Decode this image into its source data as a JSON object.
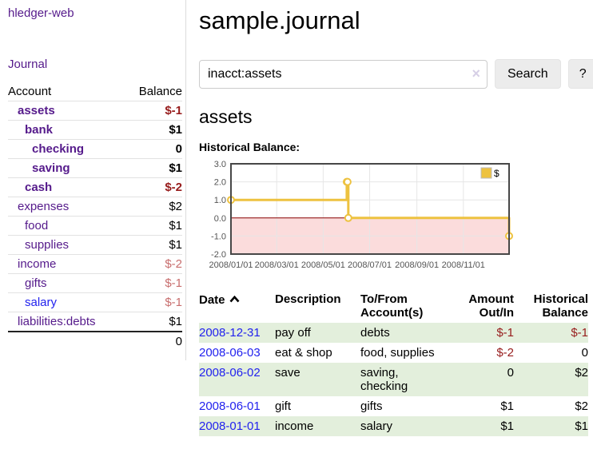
{
  "colors": {
    "purple": "#551a8b",
    "blue": "#2222ee",
    "dark_red": "#971c1c",
    "rose": "#c86e6e",
    "green_row": "#e3efdc",
    "chart_line": "#edc240",
    "chart_negative_fill": "#fbdcdc",
    "chart_zero_line": "#8b0000",
    "chart_border": "#474747",
    "chart_grid": "#e6e6e6"
  },
  "sidebar": {
    "app_title": "hledger-web",
    "journal_link": "Journal",
    "accounts_header": {
      "account": "Account",
      "balance": "Balance"
    },
    "accounts": [
      {
        "name": "assets",
        "balance": "$-1",
        "level": 1,
        "bold": true,
        "name_color": "purple",
        "balance_color": "dark_red"
      },
      {
        "name": "bank",
        "balance": "$1",
        "level": 2,
        "bold": true,
        "name_color": "purple",
        "balance_color": "black"
      },
      {
        "name": "checking",
        "balance": "0",
        "level": 3,
        "bold": true,
        "name_color": "purple",
        "balance_color": "black"
      },
      {
        "name": "saving",
        "balance": "$1",
        "level": 3,
        "bold": true,
        "name_color": "purple",
        "balance_color": "black"
      },
      {
        "name": "cash",
        "balance": "$-2",
        "level": 2,
        "bold": true,
        "name_color": "purple",
        "balance_color": "dark_red"
      },
      {
        "name": "expenses",
        "balance": "$2",
        "level": 1,
        "bold": false,
        "name_color": "purple",
        "balance_color": "black"
      },
      {
        "name": "food",
        "balance": "$1",
        "level": 2,
        "bold": false,
        "name_color": "purple",
        "balance_color": "black"
      },
      {
        "name": "supplies",
        "balance": "$1",
        "level": 2,
        "bold": false,
        "name_color": "purple",
        "balance_color": "black"
      },
      {
        "name": "income",
        "balance": "$-2",
        "level": 1,
        "bold": false,
        "name_color": "purple",
        "balance_color": "rose"
      },
      {
        "name": "gifts",
        "balance": "$-1",
        "level": 2,
        "bold": false,
        "name_color": "purple",
        "balance_color": "rose"
      },
      {
        "name": "salary",
        "balance": "$-1",
        "level": 2,
        "bold": false,
        "name_color": "blue",
        "balance_color": "rose"
      },
      {
        "name": "liabilities:debts",
        "balance": "$1",
        "level": 1,
        "bold": false,
        "name_color": "purple",
        "balance_color": "black"
      }
    ],
    "total": "0"
  },
  "main": {
    "title": "sample.journal",
    "search": {
      "value": "inacct:assets",
      "clear_icon": "×",
      "button_label": "Search",
      "help_label": "?"
    },
    "account_heading": "assets",
    "chart_label": "Historical Balance:"
  },
  "chart_data": {
    "type": "line",
    "title": "Historical Balance of assets",
    "step": true,
    "legend": [
      {
        "label": "$",
        "color": "#edc240"
      }
    ],
    "legend_position": "top-right",
    "x_type": "date",
    "x_range": [
      "2008-01-01",
      "2008-12-31"
    ],
    "x_ticks": [
      "2008/01/01",
      "2008/03/01",
      "2008/05/01",
      "2008/07/01",
      "2008/09/01",
      "2008/11/01"
    ],
    "ylim": [
      -2,
      3
    ],
    "y_ticks": [
      3.0,
      2.0,
      1.0,
      0.0,
      -1.0,
      -2.0
    ],
    "grid": true,
    "negative_region_shaded": true,
    "points": [
      {
        "date": "2008-01-01",
        "value": 1
      },
      {
        "date": "2008-06-01",
        "value": 2
      },
      {
        "date": "2008-06-02",
        "value": 2
      },
      {
        "date": "2008-06-03",
        "value": 0
      },
      {
        "date": "2008-12-31",
        "value": -1
      }
    ]
  },
  "register": {
    "headers": {
      "date": "Date",
      "description": "Description",
      "accounts": "To/From Account(s)",
      "amount": "Amount Out/In",
      "balance": "Historical Balance"
    },
    "rows": [
      {
        "date": "2008-12-31",
        "description": "pay off",
        "accounts": "debts",
        "amount": "$-1",
        "balance": "$-1",
        "amount_negative": true,
        "balance_negative": true
      },
      {
        "date": "2008-06-03",
        "description": "eat & shop",
        "accounts": "food, supplies",
        "amount": "$-2",
        "balance": "0",
        "amount_negative": true,
        "balance_negative": false
      },
      {
        "date": "2008-06-02",
        "description": "save",
        "accounts": "saving, checking",
        "amount": "0",
        "balance": "$2",
        "amount_negative": false,
        "balance_negative": false
      },
      {
        "date": "2008-06-01",
        "description": "gift",
        "accounts": "gifts",
        "amount": "$1",
        "balance": "$2",
        "amount_negative": false,
        "balance_negative": false
      },
      {
        "date": "2008-01-01",
        "description": "income",
        "accounts": "salary",
        "amount": "$1",
        "balance": "$1",
        "amount_negative": false,
        "balance_negative": false
      }
    ]
  }
}
